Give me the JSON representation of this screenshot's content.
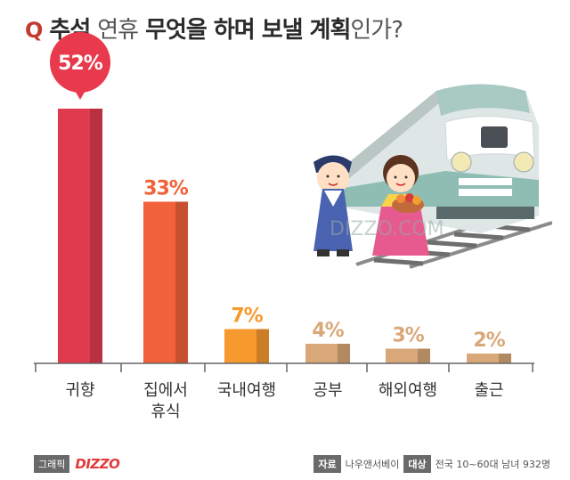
{
  "title": {
    "q": "Q",
    "w1": "추석",
    "w2": "연휴",
    "w3": "무엇을",
    "w4": "하며",
    "w5": "보낼",
    "w6": "계획",
    "w7": "인가?"
  },
  "chart_data": {
    "type": "bar",
    "categories": [
      [
        "귀향"
      ],
      [
        "집에서",
        "휴식"
      ],
      [
        "국내여행"
      ],
      [
        "공부"
      ],
      [
        "해외여행"
      ],
      [
        "출근"
      ]
    ],
    "values": [
      52,
      33,
      7,
      4,
      3,
      2
    ],
    "value_labels": [
      "52%",
      "33%",
      "7%",
      "4%",
      "3%",
      "2%"
    ],
    "ylim": [
      0,
      55
    ],
    "colors": [
      "#e03a4f",
      "#f2623a",
      "#f79a2e",
      "#d9a878",
      "#d9a878",
      "#d9a878"
    ],
    "label_colors": [
      "#ffffff",
      "#f2623a",
      "#f79a2e",
      "#d9a878",
      "#d9a878",
      "#d9a878"
    ],
    "highlight_bubble_color": "#e8394d"
  },
  "watermark": "DIZZO.COM",
  "footer": {
    "graphic_tag": "그래픽",
    "brand": "DIZZO",
    "source_tag": "자료",
    "source_value": "나우앤서베이",
    "target_tag": "대상",
    "target_value": "전국 10~60대 남녀 932명"
  }
}
